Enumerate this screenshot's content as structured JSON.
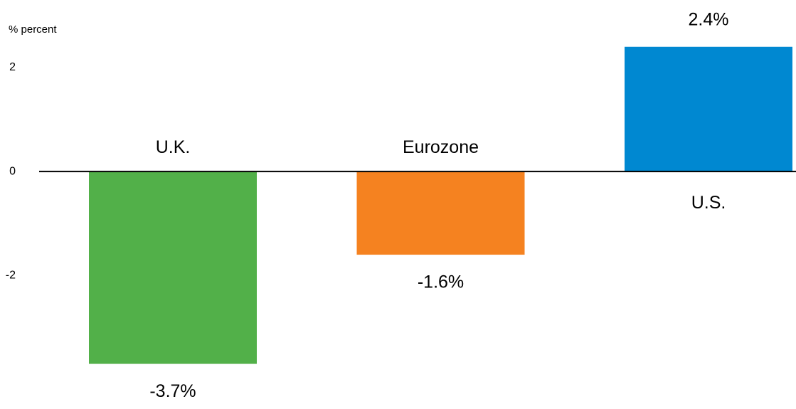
{
  "chart_data": {
    "type": "bar",
    "y_axis_label": "% percent",
    "categories": [
      "U.K.",
      "Eurozone",
      "U.S."
    ],
    "values": [
      -3.7,
      -1.6,
      2.4
    ],
    "value_labels": [
      "-3.7%",
      "-1.6%",
      "2.4%"
    ],
    "colors": [
      "#52b049",
      "#f58220",
      "#0088d1"
    ],
    "ylim": [
      -4.5,
      3.3
    ],
    "yticks": [
      -2,
      0,
      2
    ],
    "grid": false
  }
}
